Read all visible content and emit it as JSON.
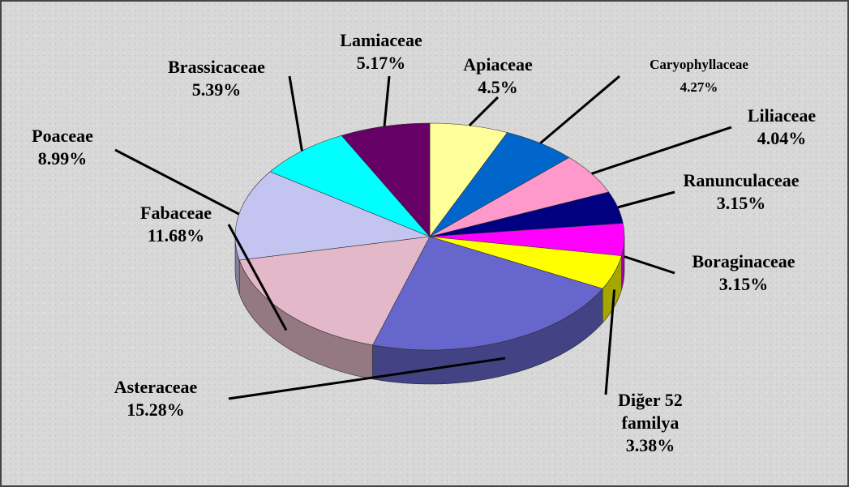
{
  "chart_data": {
    "type": "pie3d",
    "categories": [
      "Apiaceae",
      "Caryophyllaceae",
      "Liliaceae",
      "Ranunculaceae",
      "Boraginaceae",
      "Diğer 52 familya",
      "Asteraceae",
      "Fabaceae",
      "Poaceae",
      "Brassicaceae",
      "Lamiaceae"
    ],
    "values": [
      4.5,
      4.27,
      4.04,
      3.15,
      3.15,
      3.38,
      15.28,
      11.68,
      8.99,
      5.39,
      5.17
    ],
    "value_labels": [
      "4.5%",
      "4.27%",
      "4.04%",
      "3.15%",
      "3.15%",
      "3.38%",
      "15.28%",
      "11.68%",
      "8.99%",
      "5.39%",
      "5.17%"
    ],
    "colors": [
      "#ffff99",
      "#0066cc",
      "#ff99cc",
      "#000080",
      "#ff00ff",
      "#ffff00",
      "#6666cc",
      "#e3b8c8",
      "#c4c4f0",
      "#00ffff",
      "#660066"
    ]
  }
}
